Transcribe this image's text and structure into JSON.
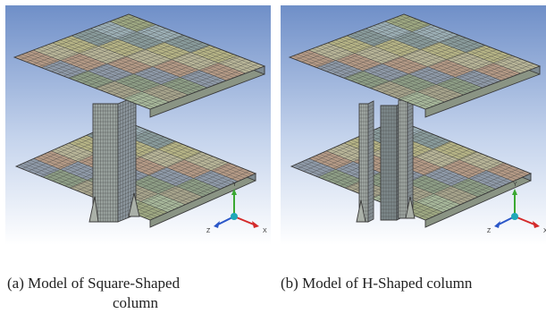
{
  "panel_a": {
    "caption_line1": "(a) Model of Square-Shaped",
    "caption_line2": "column",
    "column_type": "square"
  },
  "panel_b": {
    "caption": "(b) Model of H-Shaped column",
    "column_type": "h-shaped"
  },
  "triad": {
    "y_label": "Y",
    "z_label": "Z",
    "x_label": "X",
    "colors": {
      "x": "#d42a2a",
      "y": "#3aa832",
      "z": "#2a56c8",
      "origin": "#20a8b8"
    }
  },
  "colors": {
    "background_top": "#6f8fc8",
    "background_bottom": "#ffffff",
    "mesh_line": "#3a3a3a",
    "patch_palette": [
      "#9ea882",
      "#b6b486",
      "#8f9aa8",
      "#a7b79a",
      "#8a9c9c",
      "#b49a86",
      "#a7a48c",
      "#9db0b6",
      "#b8b598",
      "#8e9e86"
    ]
  }
}
